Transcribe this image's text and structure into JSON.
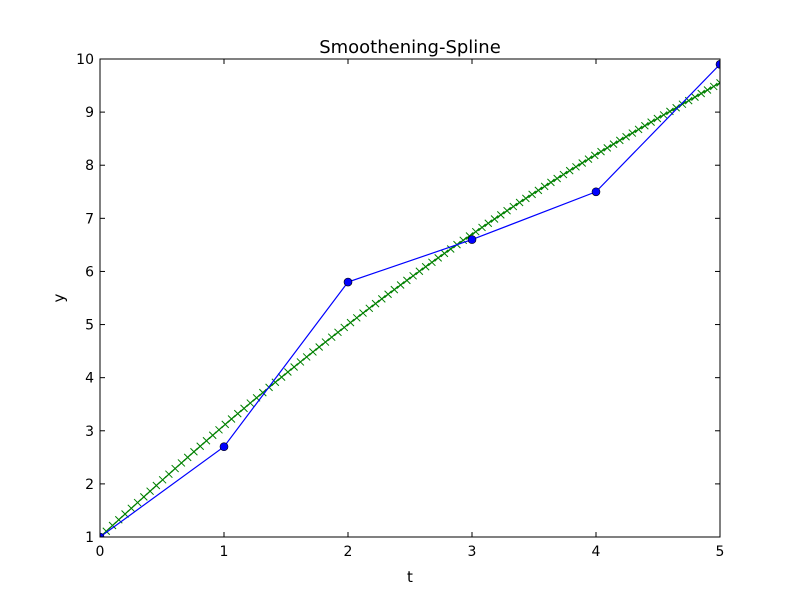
{
  "chart_data": {
    "type": "line",
    "title": "Smoothening-Spline",
    "xlabel": "t",
    "ylabel": "y",
    "xlim": [
      0,
      5
    ],
    "ylim": [
      1,
      10
    ],
    "xticks": [
      "0",
      "1",
      "2",
      "3",
      "4",
      "5"
    ],
    "yticks": [
      "1",
      "2",
      "3",
      "4",
      "5",
      "6",
      "7",
      "8",
      "9",
      "10"
    ],
    "grid": false,
    "legend": "none",
    "series": [
      {
        "style": "line-with-circle-markers",
        "color": "#0000ff",
        "x": [
          0,
          1,
          2,
          3,
          4,
          5
        ],
        "y": [
          1.0,
          2.7,
          5.8,
          6.6,
          7.5,
          9.9
        ]
      },
      {
        "style": "line-with-x-markers",
        "color": "#008000",
        "x_range": [
          0,
          5
        ],
        "marker_count": 100,
        "y_at_integer_x": [
          1.0,
          3.1,
          5.0,
          6.7,
          8.2,
          9.55
        ]
      }
    ]
  }
}
